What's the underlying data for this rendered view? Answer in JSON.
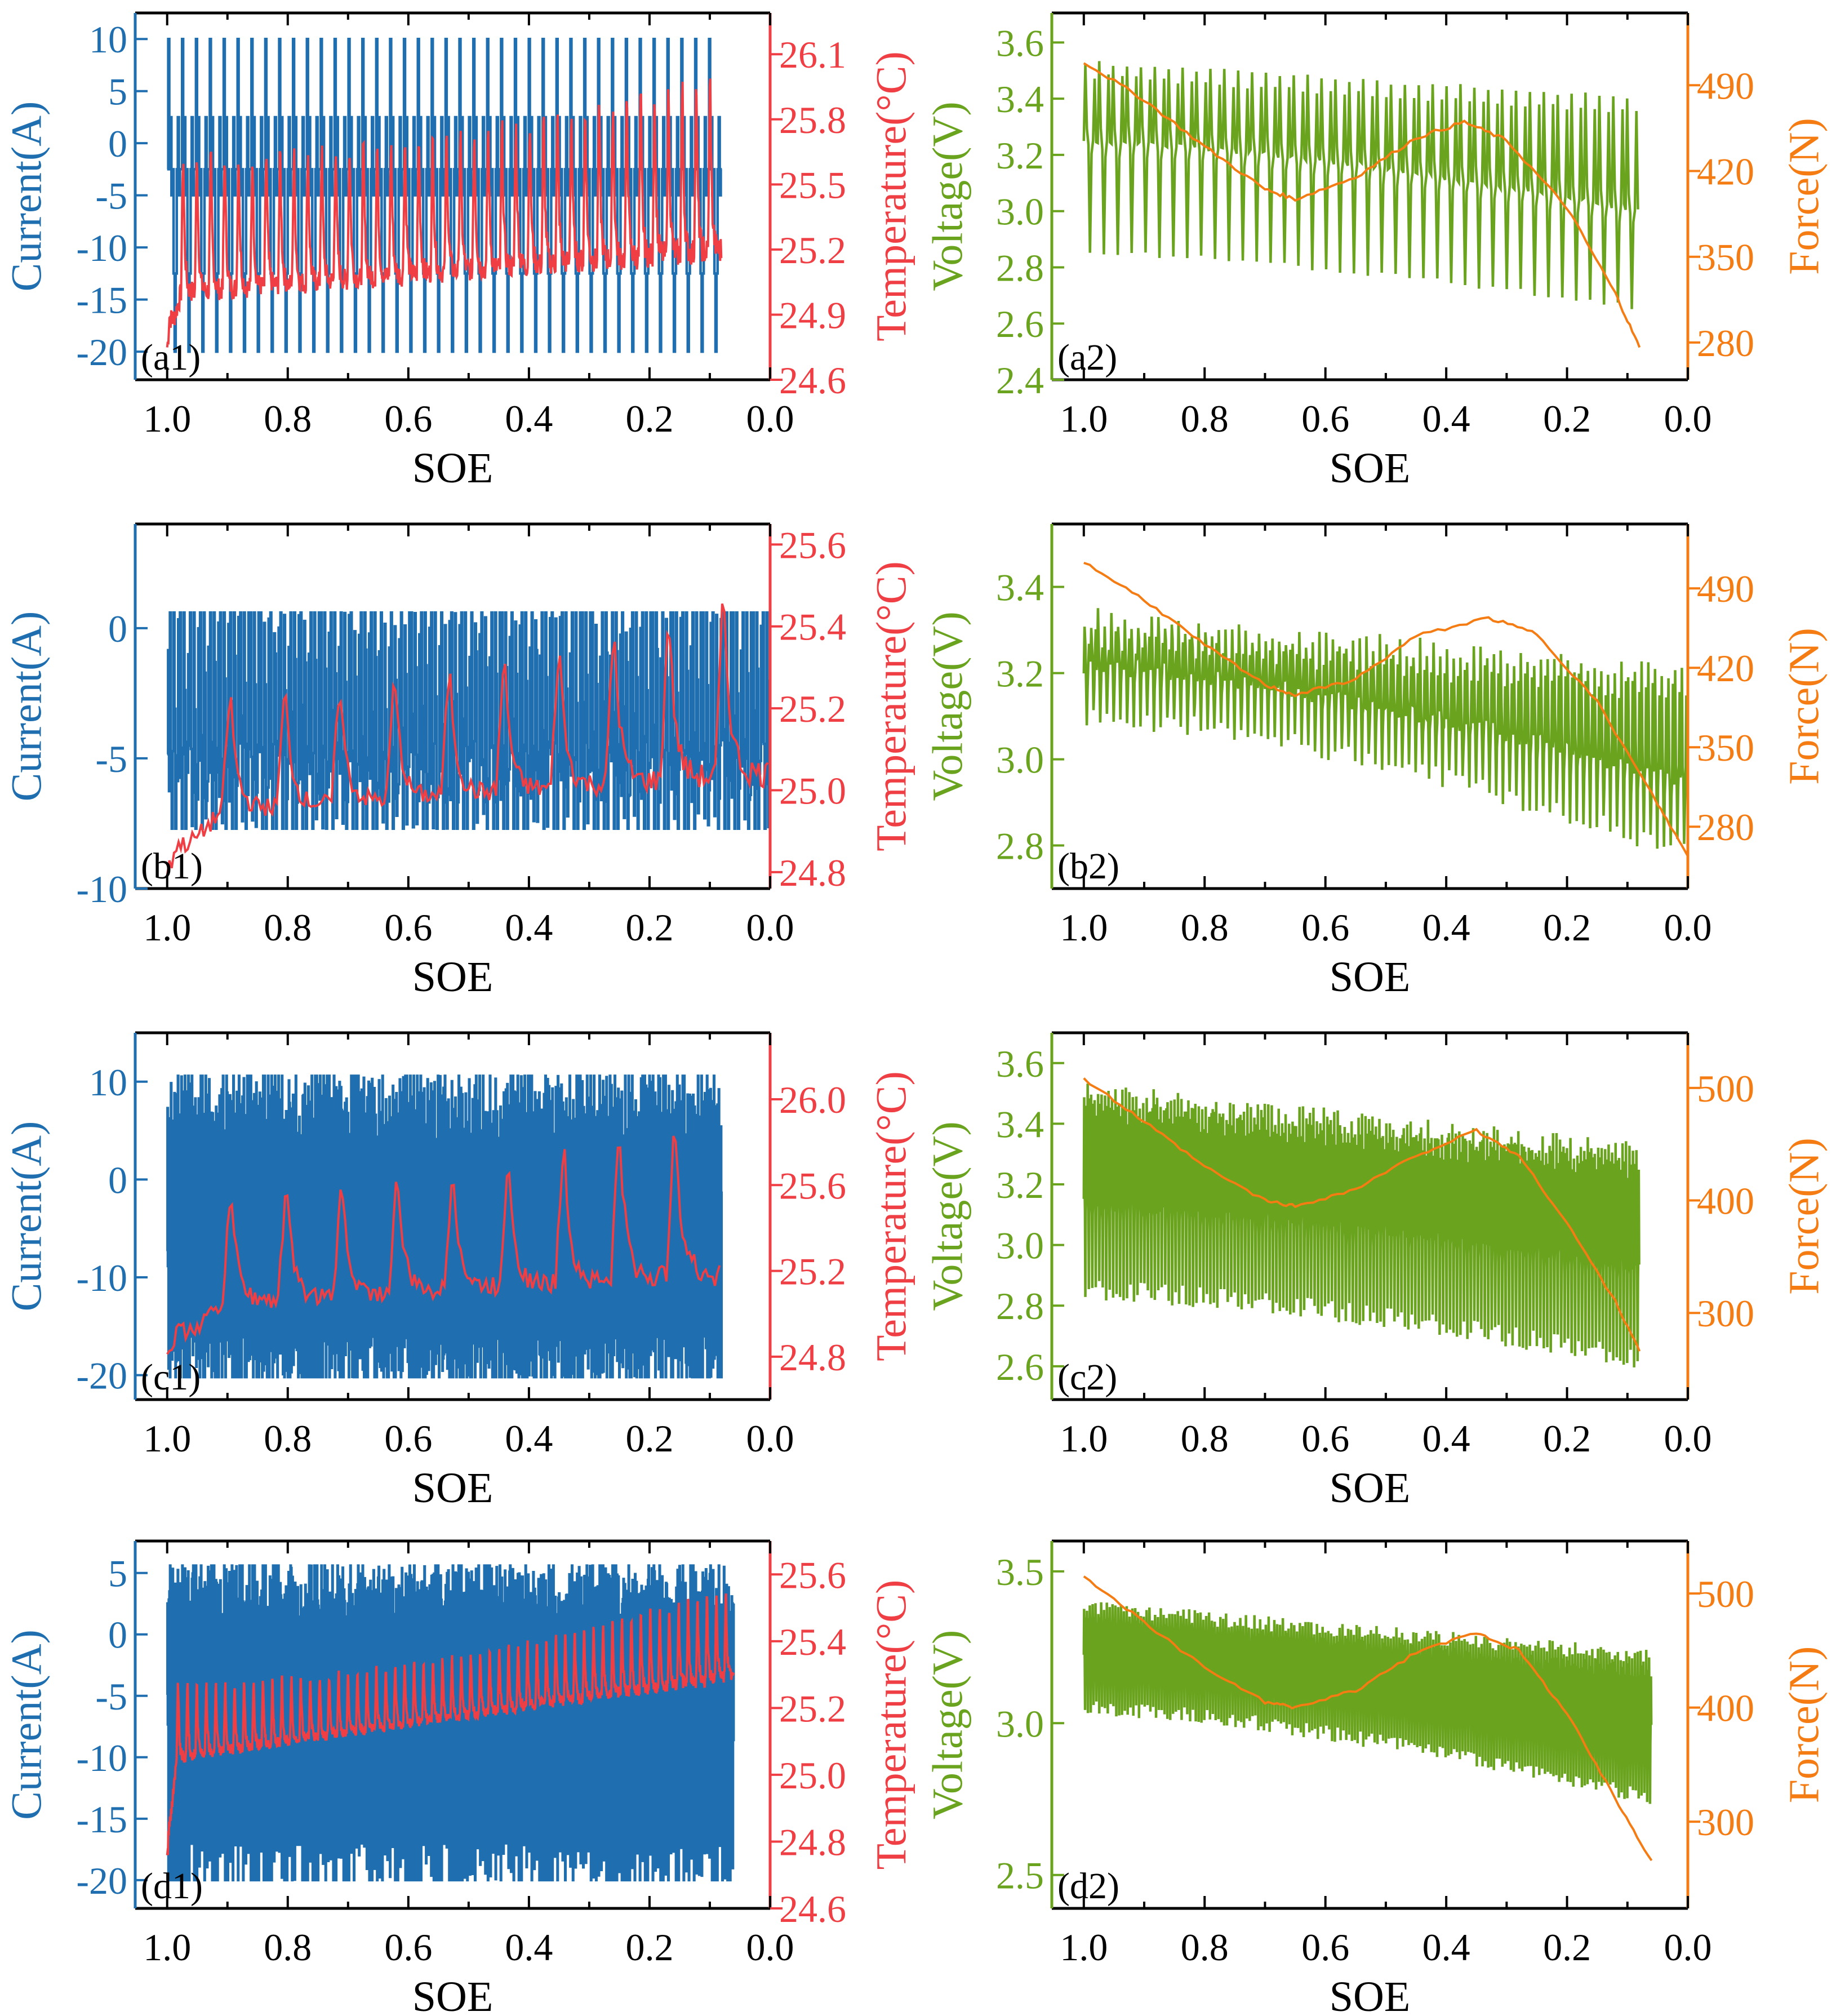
{
  "colors": {
    "current": "#1f6fb0",
    "temperature": "#ef3f44",
    "voltage": "#6aa31e",
    "force": "#f57c12",
    "frame": "#000000"
  },
  "chart_data": [
    {
      "id": "a1",
      "type": "line",
      "panel_label": "(a1)",
      "xlabel": "SOE",
      "xlim": [
        1.053,
        0.0
      ],
      "x_ticks": [
        "1.0",
        "0.8",
        "0.6",
        "0.4",
        "0.2",
        "0.0"
      ],
      "left_axis": {
        "label": "Current(A)",
        "series": "current",
        "ylim": [
          -22.7,
          12.5
        ],
        "ticks": [
          "10",
          "5",
          "0",
          "-5",
          "-10",
          "-15",
          "-20"
        ],
        "tick_values": [
          10,
          5,
          0,
          -5,
          -10,
          -15,
          -20
        ]
      },
      "right_axis": {
        "label": "Temperature(°C)",
        "series": "temperature",
        "ylim": [
          24.6,
          26.29
        ],
        "ticks": [
          "26.1",
          "25.8",
          "25.5",
          "25.2",
          "24.9",
          "24.6"
        ],
        "tick_values": [
          26.1,
          25.8,
          25.5,
          25.2,
          24.9,
          24.6
        ]
      },
      "left_signal": {
        "kind": "pulse",
        "soe_end": 0.08,
        "cycles": 40,
        "pattern": [
          -2.5,
          10,
          -2.5,
          2.5,
          -5,
          -2.5,
          -12.5,
          -20,
          -12.5,
          -2.5,
          2.5,
          -5,
          -2.5
        ],
        "jitter": 0
      },
      "right_signal": {
        "kind": "saw",
        "soe_end": 0.08,
        "cycles": 40,
        "start": 24.75,
        "base_start": 25.0,
        "base_end": 25.2,
        "peak_start": 25.7,
        "peak_end": 26.1
      }
    },
    {
      "id": "a2",
      "type": "line",
      "panel_label": "(a2)",
      "xlabel": "SOE",
      "xlim": [
        1.053,
        0.0
      ],
      "x_ticks": [
        "1.0",
        "0.8",
        "0.6",
        "0.4",
        "0.2",
        "0.0"
      ],
      "left_axis": {
        "label": "Voltage(V)",
        "series": "voltage",
        "ylim": [
          2.4,
          3.705
        ],
        "ticks": [
          "3.6",
          "3.4",
          "3.2",
          "3.0",
          "2.8",
          "2.6",
          "2.4"
        ],
        "tick_values": [
          3.6,
          3.4,
          3.2,
          3.0,
          2.8,
          2.6,
          2.4
        ]
      },
      "right_axis": {
        "label": "Force(N)",
        "series": "force",
        "ylim": [
          249.6,
          549
        ],
        "ticks": [
          "490",
          "420",
          "350",
          "280"
        ],
        "tick_values": [
          490,
          420,
          350,
          280
        ]
      },
      "left_signal": {
        "kind": "volt",
        "soe_end": 0.08,
        "cycles": 40,
        "high_start": 3.53,
        "high_end": 3.4,
        "base_start": 3.25,
        "base_end": 3.0,
        "low_start": 2.85,
        "low_end": 2.65,
        "jitter": 0.02
      },
      "right_signal": {
        "kind": "curve",
        "x": [
          1.0,
          0.9,
          0.8,
          0.7,
          0.65,
          0.55,
          0.45,
          0.37,
          0.3,
          0.2,
          0.12,
          0.08
        ],
        "y": [
          509,
          478,
          440,
          405,
          397,
          415,
          447,
          460,
          445,
          390,
          320,
          276
        ]
      }
    },
    {
      "id": "b1",
      "type": "line",
      "panel_label": "(b1)",
      "xlabel": "SOE",
      "xlim": [
        1.053,
        0.0
      ],
      "x_ticks": [
        "1.0",
        "0.8",
        "0.6",
        "0.4",
        "0.2",
        "0.0"
      ],
      "left_axis": {
        "label": "Current(A)",
        "series": "current",
        "ylim": [
          -10,
          4.0
        ],
        "ticks": [
          "0",
          "-5",
          "-10"
        ],
        "tick_values": [
          0,
          -5,
          -10
        ]
      },
      "right_axis": {
        "label": "Temperature(°C)",
        "series": "temperature",
        "ylim": [
          24.76,
          25.65
        ],
        "ticks": [
          "25.6",
          "25.4",
          "25.2",
          "25.0",
          "24.8"
        ],
        "tick_values": [
          25.6,
          25.4,
          25.2,
          25.0,
          24.8
        ]
      },
      "left_signal": {
        "kind": "pulse",
        "soe_end": 0.0,
        "cycles": 60,
        "pattern": [
          -5.5,
          0,
          -5.5,
          2,
          -4,
          -8.3,
          -5.5,
          1,
          -2,
          -8.3,
          -5.5
        ],
        "jitter": 1.2
      },
      "right_signal": {
        "kind": "saw",
        "soe_end": 0.0,
        "cycles": 11,
        "start": 24.8,
        "base_start": 24.95,
        "base_end": 25.05,
        "peak_start": 25.25,
        "peak_end": 25.55
      }
    },
    {
      "id": "b2",
      "type": "line",
      "panel_label": "(b2)",
      "xlabel": "SOE",
      "xlim": [
        1.053,
        0.0
      ],
      "x_ticks": [
        "1.0",
        "0.8",
        "0.6",
        "0.4",
        "0.2",
        "0.0"
      ],
      "left_axis": {
        "label": "Voltage(V)",
        "series": "voltage",
        "ylim": [
          2.7,
          3.546
        ],
        "ticks": [
          "3.4",
          "3.2",
          "3.0",
          "2.8"
        ],
        "tick_values": [
          3.4,
          3.2,
          3.0,
          2.8
        ]
      },
      "right_axis": {
        "label": "Force(N)",
        "series": "force",
        "ylim": [
          225.5,
          546.7
        ],
        "ticks": [
          "490",
          "420",
          "350",
          "280"
        ],
        "tick_values": [
          490,
          420,
          350,
          280
        ]
      },
      "left_signal": {
        "kind": "volt",
        "soe_end": 0.0,
        "cycles": 90,
        "high_start": 3.33,
        "high_end": 3.2,
        "base_start": 3.22,
        "base_end": 2.95,
        "low_start": 3.1,
        "low_end": 2.78,
        "jitter": 0.05
      },
      "right_signal": {
        "kind": "curve",
        "x": [
          1.0,
          0.9,
          0.8,
          0.7,
          0.65,
          0.55,
          0.45,
          0.33,
          0.25,
          0.15,
          0.05,
          0.0
        ],
        "y": [
          513,
          480,
          440,
          405,
          396,
          410,
          448,
          464,
          450,
          390,
          300,
          254
        ]
      }
    },
    {
      "id": "c1",
      "type": "line",
      "panel_label": "(c1)",
      "xlabel": "SOE",
      "xlim": [
        1.053,
        0.0
      ],
      "x_ticks": [
        "1.0",
        "0.8",
        "0.6",
        "0.4",
        "0.2",
        "0.0"
      ],
      "left_axis": {
        "label": "Current(A)",
        "series": "current",
        "ylim": [
          -22.5,
          15
        ],
        "ticks": [
          "10",
          "0",
          "-10",
          "-20"
        ],
        "tick_values": [
          10,
          0,
          -10,
          -20
        ]
      },
      "right_axis": {
        "label": "Temperature(°C)",
        "series": "temperature",
        "ylim": [
          24.6,
          26.31
        ],
        "ticks": [
          "26.0",
          "25.6",
          "25.2",
          "24.8"
        ],
        "tick_values": [
          26.0,
          25.6,
          25.2,
          24.8
        ]
      },
      "left_signal": {
        "kind": "pulse",
        "soe_end": 0.08,
        "cycles": 160,
        "pattern": [
          -5,
          10,
          -10,
          5,
          -20,
          0,
          -15,
          8,
          -20,
          -5
        ],
        "jitter": 4
      },
      "right_signal": {
        "kind": "saw",
        "soe_end": 0.08,
        "cycles": 10,
        "start": 24.8,
        "base_start": 25.05,
        "base_end": 25.2,
        "peak_start": 25.6,
        "peak_end": 26.05
      }
    },
    {
      "id": "c2",
      "type": "line",
      "panel_label": "(c2)",
      "xlabel": "SOE",
      "xlim": [
        1.053,
        0.0
      ],
      "x_ticks": [
        "1.0",
        "0.8",
        "0.6",
        "0.4",
        "0.2",
        "0.0"
      ],
      "left_axis": {
        "label": "Voltage(V)",
        "series": "voltage",
        "ylim": [
          2.49,
          3.7
        ],
        "ticks": [
          "3.6",
          "3.4",
          "3.2",
          "3.0",
          "2.8",
          "2.6"
        ],
        "tick_values": [
          3.6,
          3.4,
          3.2,
          3.0,
          2.8,
          2.6
        ]
      },
      "right_axis": {
        "label": "Force(N)",
        "series": "force",
        "ylim": [
          223,
          549
        ],
        "ticks": [
          "500",
          "400",
          "300"
        ],
        "tick_values": [
          500,
          400,
          300
        ]
      },
      "left_signal": {
        "kind": "volt",
        "soe_end": 0.08,
        "cycles": 160,
        "high_start": 3.5,
        "high_end": 3.3,
        "base_start": 3.15,
        "base_end": 2.95,
        "low_start": 2.85,
        "low_end": 2.62,
        "jitter": 0.08
      },
      "right_signal": {
        "kind": "curve",
        "x": [
          1.0,
          0.9,
          0.8,
          0.7,
          0.65,
          0.55,
          0.45,
          0.35,
          0.28,
          0.2,
          0.12,
          0.08
        ],
        "y": [
          508,
          470,
          430,
          400,
          395,
          410,
          440,
          462,
          440,
          380,
          310,
          266
        ]
      }
    },
    {
      "id": "d1",
      "type": "line",
      "panel_label": "(d1)",
      "xlabel": "SOE",
      "xlim": [
        1.053,
        0.0
      ],
      "x_ticks": [
        "1.0",
        "0.8",
        "0.6",
        "0.4",
        "0.2",
        "0.0"
      ],
      "left_axis": {
        "label": "Current(A)",
        "series": "current",
        "ylim": [
          -22.3,
          7.6
        ],
        "ticks": [
          "5",
          "0",
          "-5",
          "-10",
          "-15",
          "-20"
        ],
        "tick_values": [
          5,
          0,
          -5,
          -10,
          -15,
          -20
        ]
      },
      "right_axis": {
        "label": "Temperature(°C)",
        "series": "temperature",
        "ylim": [
          24.6,
          25.7
        ],
        "ticks": [
          "25.6",
          "25.4",
          "25.2",
          "25.0",
          "24.8",
          "24.6"
        ],
        "tick_values": [
          25.6,
          25.4,
          25.2,
          25.0,
          24.8,
          24.6
        ]
      },
      "left_signal": {
        "kind": "pulse",
        "soe_end": 0.06,
        "cycles": 220,
        "pattern": [
          -3,
          4,
          -10,
          0,
          -20,
          2,
          -8,
          3
        ],
        "jitter": 3
      },
      "right_signal": {
        "kind": "saw",
        "soe_end": 0.06,
        "cycles": 60,
        "start": 24.75,
        "base_start": 25.05,
        "base_end": 25.3,
        "peak_start": 25.3,
        "peak_end": 25.6
      }
    },
    {
      "id": "d2",
      "type": "line",
      "panel_label": "(d2)",
      "xlabel": "SOE",
      "xlim": [
        1.053,
        0.0
      ],
      "x_ticks": [
        "1.0",
        "0.8",
        "0.6",
        "0.4",
        "0.2",
        "0.0"
      ],
      "left_axis": {
        "label": "Voltage(V)",
        "series": "voltage",
        "ylim": [
          2.39,
          3.6
        ],
        "ticks": [
          "3.5",
          "3.0",
          "2.5"
        ],
        "tick_values": [
          3.5,
          3.0,
          2.5
        ]
      },
      "right_axis": {
        "label": "Force(N)",
        "series": "force",
        "ylim": [
          224,
          546
        ],
        "ticks": [
          "500",
          "400",
          "300"
        ],
        "tick_values": [
          500,
          400,
          300
        ]
      },
      "left_signal": {
        "kind": "volt",
        "soe_end": 0.06,
        "cycles": 200,
        "high_start": 3.38,
        "high_end": 3.22,
        "base_start": 3.25,
        "base_end": 3.0,
        "low_start": 3.05,
        "low_end": 2.75,
        "jitter": 0.05
      },
      "right_signal": {
        "kind": "curve",
        "x": [
          1.0,
          0.9,
          0.8,
          0.7,
          0.65,
          0.55,
          0.45,
          0.35,
          0.28,
          0.2,
          0.12,
          0.06
        ],
        "y": [
          514,
          475,
          435,
          405,
          400,
          415,
          448,
          466,
          450,
          395,
          320,
          266
        ]
      }
    }
  ]
}
